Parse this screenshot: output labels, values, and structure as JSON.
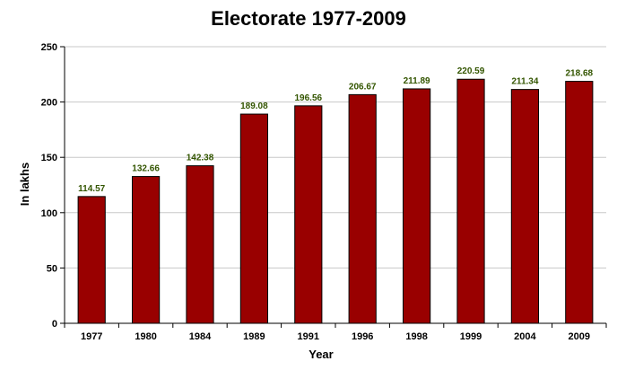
{
  "chart_data": {
    "type": "bar",
    "title": "Electorate 1977-2009",
    "xlabel": "Year",
    "ylabel": "In lakhs",
    "categories": [
      "1977",
      "1980",
      "1984",
      "1989",
      "1991",
      "1996",
      "1998",
      "1999",
      "2004",
      "2009"
    ],
    "values": [
      114.57,
      132.66,
      142.38,
      189.08,
      196.56,
      206.67,
      211.89,
      220.59,
      211.34,
      218.68
    ],
    "data_labels": [
      "114.57",
      "132.66",
      "142.38",
      "189.08",
      "196.56",
      "206.67",
      "211.89",
      "220.59",
      "211.34",
      "218.68"
    ],
    "ylim": [
      0,
      250
    ],
    "yticks": [
      "0",
      "50",
      "100",
      "150",
      "200",
      "250"
    ],
    "grid": true,
    "legend": "none",
    "colors": {
      "bar": "#990000",
      "bar_edge": "#000000",
      "data_label": "#335500",
      "grid": "#c8c8c8"
    }
  }
}
